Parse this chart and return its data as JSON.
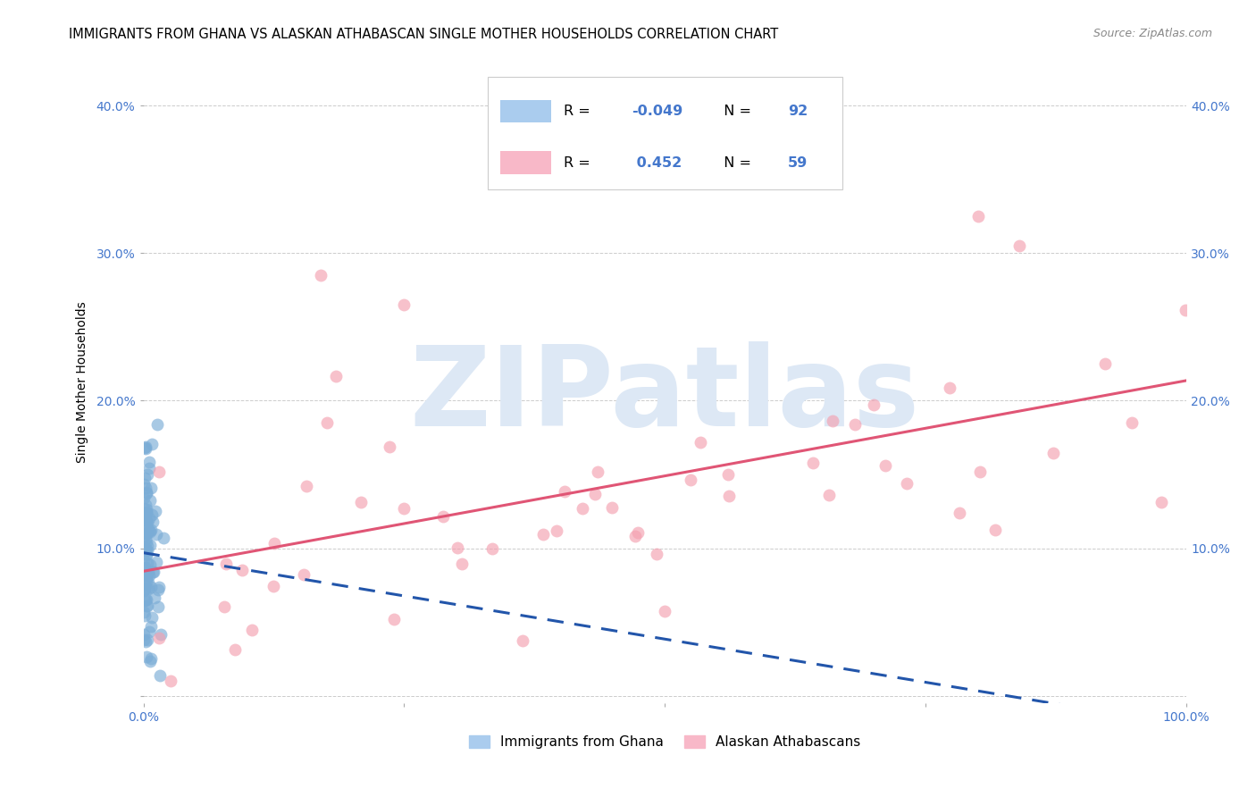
{
  "title": "IMMIGRANTS FROM GHANA VS ALASKAN ATHABASCAN SINGLE MOTHER HOUSEHOLDS CORRELATION CHART",
  "source": "Source: ZipAtlas.com",
  "ylabel": "Single Mother Households",
  "xlim": [
    0,
    1.0
  ],
  "ylim": [
    -0.005,
    0.43
  ],
  "x_tick_positions": [
    0.0,
    0.25,
    0.5,
    0.75,
    1.0
  ],
  "x_tick_labels": [
    "0.0%",
    "",
    "",
    "",
    "100.0%"
  ],
  "y_tick_positions": [
    0.0,
    0.1,
    0.2,
    0.3,
    0.4
  ],
  "y_tick_labels": [
    "",
    "10.0%",
    "20.0%",
    "30.0%",
    "40.0%"
  ],
  "background_color": "#ffffff",
  "watermark_text": "ZIPatlas",
  "watermark_color": "#dde8f5",
  "blue_color": "#7aacd6",
  "pink_color": "#f4a0b0",
  "blue_line_color": "#2255aa",
  "pink_line_color": "#e05575",
  "grid_color": "#cccccc",
  "tick_color": "#4477cc",
  "legend_blue_r": "-0.049",
  "legend_blue_n": "92",
  "legend_pink_r": "0.452",
  "legend_pink_n": "59"
}
